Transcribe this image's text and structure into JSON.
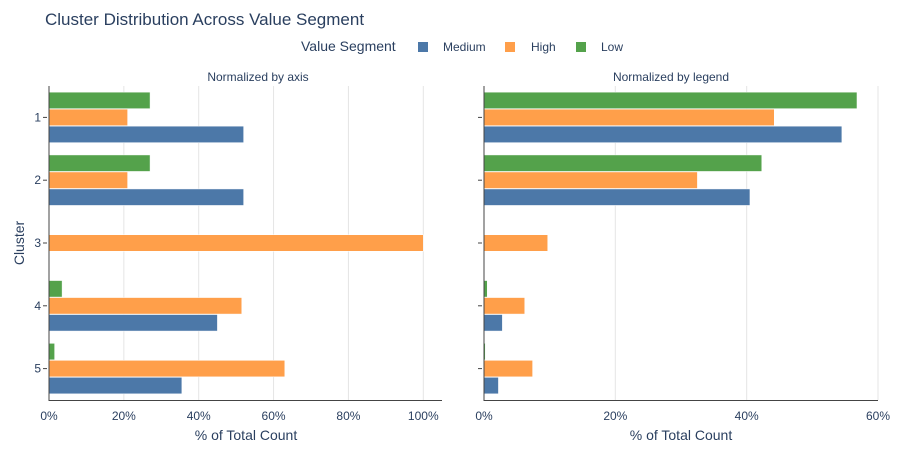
{
  "chart_data": {
    "type": "bar",
    "orientation": "horizontal",
    "title": "Cluster Distribution Across Value Segment",
    "legend": {
      "title": "Value Segment",
      "placement": "top-center",
      "items": [
        {
          "name": "Medium",
          "color": "#4c78a8"
        },
        {
          "name": "High",
          "color": "#ff9f4a"
        },
        {
          "name": "Low",
          "color": "#54a24b"
        }
      ]
    },
    "categories": [
      "1",
      "2",
      "3",
      "4",
      "5"
    ],
    "ylabel": "Cluster",
    "panels": [
      {
        "subtitle": "Normalized by axis",
        "xlabel": "% of Total Count",
        "xlim": [
          0,
          105
        ],
        "xticks": [
          0,
          20,
          40,
          60,
          80,
          100
        ],
        "xtick_labels": [
          "0%",
          "20%",
          "40%",
          "60%",
          "80%",
          "100%"
        ],
        "series": [
          {
            "name": "Medium",
            "values": [
              52,
              52,
              null,
              45,
              35.5
            ]
          },
          {
            "name": "High",
            "values": [
              21,
              21,
              100,
              51.5,
              63
            ]
          },
          {
            "name": "Low",
            "values": [
              27,
              27,
              null,
              3.5,
              1.5
            ]
          }
        ]
      },
      {
        "subtitle": "Normalized by legend",
        "xlabel": "% of Total Count",
        "xlim": [
          0,
          60
        ],
        "xticks": [
          0,
          20,
          40,
          60
        ],
        "xtick_labels": [
          "0%",
          "20%",
          "40%",
          "60%"
        ],
        "series": [
          {
            "name": "Medium",
            "values": [
              54.5,
              40.5,
              null,
              2.8,
              2.2
            ]
          },
          {
            "name": "High",
            "values": [
              44.2,
              32.5,
              9.7,
              6.2,
              7.4
            ]
          },
          {
            "name": "Low",
            "values": [
              56.8,
              42.3,
              null,
              0.5,
              0.2
            ]
          }
        ]
      }
    ]
  }
}
